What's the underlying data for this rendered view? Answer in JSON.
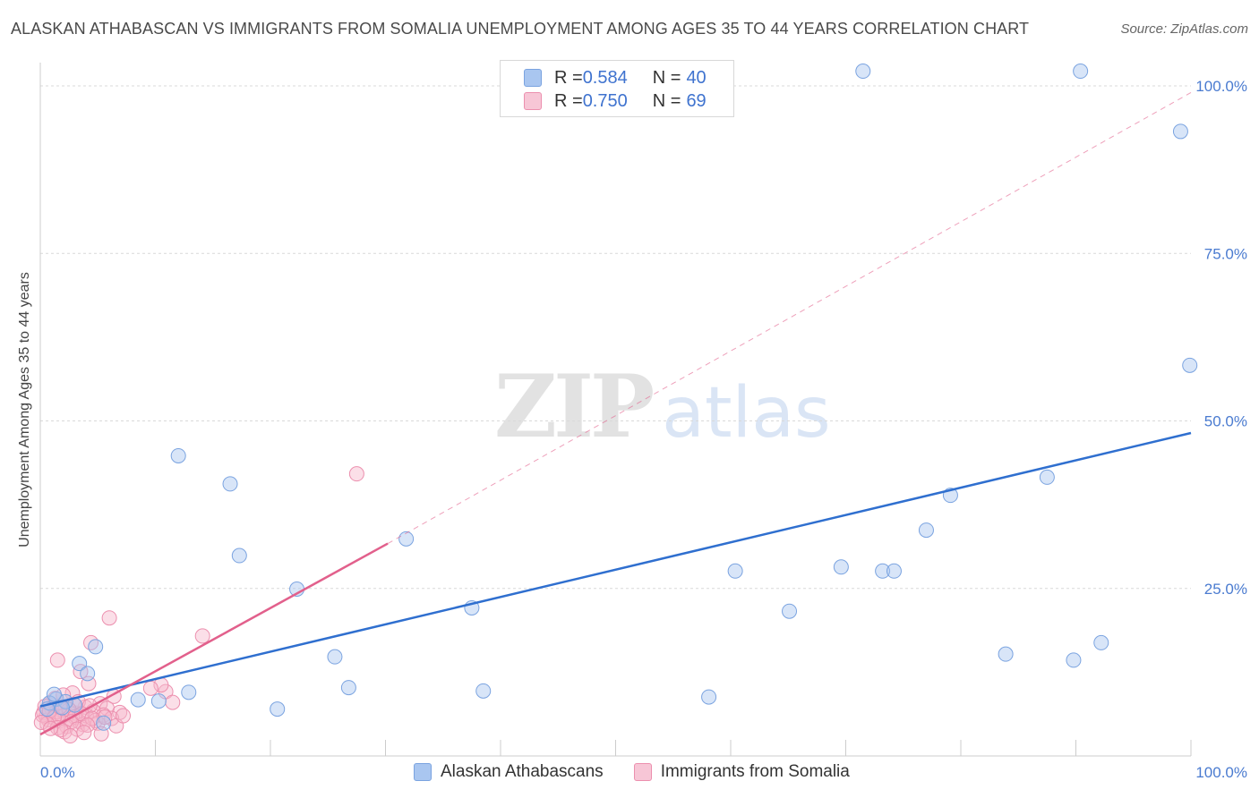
{
  "header": {
    "title": "ALASKAN ATHABASCAN VS IMMIGRANTS FROM SOMALIA UNEMPLOYMENT AMONG AGES 35 TO 44 YEARS CORRELATION CHART",
    "source": "Source: ZipAtlas.com"
  },
  "watermark": {
    "zip": "ZIP",
    "atlas": "atlas"
  },
  "legend": {
    "rows": [
      {
        "r_label": "R = ",
        "r_value": "0.584",
        "n_label": "N = ",
        "n_value": "40"
      },
      {
        "r_label": "R = ",
        "r_value": "0.750",
        "n_label": "N = ",
        "n_value": "69"
      }
    ]
  },
  "bottom_legend": {
    "series_a": "Alaskan Athabascans",
    "series_b": "Immigrants from Somalia"
  },
  "colors": {
    "blue_fill": "#a9c6f0",
    "blue_stroke": "#7aa3e0",
    "blue_line": "#2f6fcf",
    "pink_fill": "#f7b8cb",
    "pink_stroke": "#ec8fae",
    "pink_line": "#e2608c",
    "grid": "#d9d9d9"
  },
  "chart_data": {
    "type": "scatter",
    "title": "ALASKAN ATHABASCAN VS IMMIGRANTS FROM SOMALIA UNEMPLOYMENT AMONG AGES 35 TO 44 YEARS CORRELATION CHART",
    "xlabel": "",
    "ylabel": "Unemployment Among Ages 35 to 44 years",
    "xlim": [
      0,
      100
    ],
    "ylim": [
      0,
      100
    ],
    "x_tick_labels": [
      "0.0%",
      "100.0%"
    ],
    "y_ticks": [
      25,
      50,
      75,
      100
    ],
    "y_tick_labels": [
      "25.0%",
      "50.0%",
      "75.0%",
      "100.0%"
    ],
    "series": [
      {
        "name": "Alaskan Athabascans",
        "r": 0.584,
        "n": 40,
        "trend": {
          "x": [
            0,
            100
          ],
          "y": [
            7.4,
            48.2
          ]
        },
        "points": [
          [
            71.5,
            102.2
          ],
          [
            90.4,
            102.2
          ],
          [
            99.1,
            93.2
          ],
          [
            99.9,
            58.3
          ],
          [
            12.0,
            44.8
          ],
          [
            16.5,
            40.6
          ],
          [
            17.3,
            29.9
          ],
          [
            31.8,
            32.4
          ],
          [
            22.3,
            24.9
          ],
          [
            37.5,
            22.1
          ],
          [
            25.6,
            14.8
          ],
          [
            26.8,
            10.2
          ],
          [
            38.5,
            9.7
          ],
          [
            10.3,
            8.2
          ],
          [
            12.9,
            9.5
          ],
          [
            8.5,
            8.4
          ],
          [
            20.6,
            7.0
          ],
          [
            58.1,
            8.8
          ],
          [
            60.4,
            27.6
          ],
          [
            69.6,
            28.2
          ],
          [
            73.2,
            27.6
          ],
          [
            74.2,
            27.6
          ],
          [
            65.1,
            21.6
          ],
          [
            77.0,
            33.7
          ],
          [
            79.1,
            38.9
          ],
          [
            87.5,
            41.6
          ],
          [
            83.9,
            15.2
          ],
          [
            89.8,
            14.3
          ],
          [
            92.2,
            16.9
          ],
          [
            4.8,
            16.3
          ],
          [
            3.4,
            13.8
          ],
          [
            4.1,
            12.3
          ],
          [
            5.5,
            4.9
          ],
          [
            3.0,
            7.6
          ],
          [
            1.4,
            8.5
          ],
          [
            0.8,
            7.9
          ],
          [
            2.2,
            8.1
          ],
          [
            1.9,
            7.2
          ],
          [
            0.6,
            7.0
          ],
          [
            1.2,
            9.2
          ]
        ]
      },
      {
        "name": "Immigrants from Somalia",
        "r": 0.75,
        "n": 69,
        "trend": {
          "x": [
            0,
            30.2
          ],
          "y": [
            3.2,
            31.7
          ]
        },
        "trend_extension": {
          "x": [
            30.2,
            100
          ],
          "y": [
            31.7,
            99.0
          ]
        },
        "points": [
          [
            27.5,
            42.1
          ],
          [
            6.0,
            20.6
          ],
          [
            14.1,
            17.9
          ],
          [
            4.4,
            16.9
          ],
          [
            1.5,
            14.3
          ],
          [
            3.5,
            12.6
          ],
          [
            4.2,
            10.8
          ],
          [
            2.8,
            9.4
          ],
          [
            10.9,
            9.6
          ],
          [
            11.5,
            8.0
          ],
          [
            10.5,
            10.6
          ],
          [
            9.6,
            10.1
          ],
          [
            5.2,
            7.8
          ],
          [
            6.4,
            8.9
          ],
          [
            3.1,
            6.4
          ],
          [
            2.4,
            7.1
          ],
          [
            1.8,
            6.8
          ],
          [
            1.1,
            6.2
          ],
          [
            0.5,
            5.9
          ],
          [
            0.9,
            7.8
          ],
          [
            1.3,
            8.6
          ],
          [
            2.0,
            9.1
          ],
          [
            2.6,
            5.5
          ],
          [
            3.4,
            5.1
          ],
          [
            3.9,
            7.3
          ],
          [
            4.6,
            6.7
          ],
          [
            5.8,
            7.1
          ],
          [
            6.9,
            6.5
          ],
          [
            0.3,
            6.5
          ],
          [
            0.7,
            5.4
          ],
          [
            1.6,
            5.2
          ],
          [
            2.2,
            6.2
          ],
          [
            2.9,
            7.7
          ],
          [
            3.3,
            8.1
          ],
          [
            4.0,
            6.0
          ],
          [
            4.8,
            5.3
          ],
          [
            5.5,
            6.1
          ],
          [
            6.2,
            5.6
          ],
          [
            0.4,
            7.4
          ],
          [
            1.0,
            7.0
          ],
          [
            1.4,
            6.6
          ],
          [
            1.9,
            5.9
          ],
          [
            2.5,
            6.9
          ],
          [
            3.0,
            5.8
          ],
          [
            3.7,
            4.7
          ],
          [
            4.3,
            7.5
          ],
          [
            5.0,
            4.9
          ],
          [
            5.6,
            5.8
          ],
          [
            0.2,
            6.1
          ],
          [
            0.8,
            6.7
          ],
          [
            1.2,
            5.7
          ],
          [
            1.7,
            7.3
          ],
          [
            2.3,
            4.4
          ],
          [
            2.7,
            5.1
          ],
          [
            3.6,
            6.3
          ],
          [
            4.5,
            5.6
          ],
          [
            6.6,
            4.5
          ],
          [
            7.2,
            6.0
          ],
          [
            0.6,
            4.8
          ],
          [
            1.5,
            4.2
          ],
          [
            2.1,
            3.6
          ],
          [
            3.2,
            4.0
          ],
          [
            4.1,
            4.6
          ],
          [
            0.1,
            5.0
          ],
          [
            5.3,
            3.3
          ],
          [
            1.8,
            3.9
          ],
          [
            2.6,
            3.0
          ],
          [
            3.8,
            3.5
          ],
          [
            0.9,
            4.1
          ]
        ]
      }
    ]
  }
}
